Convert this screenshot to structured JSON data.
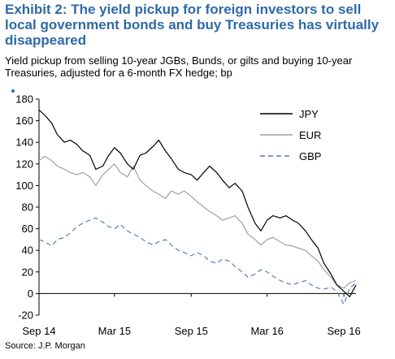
{
  "header": {
    "title": "Exhibit 2: The yield pickup for foreign investors to sell local government bonds and buy Treasuries has virtually disappeared",
    "subtitle": "Yield pickup from selling 10-year JGBs, Bunds, or gilts and buying 10-year Treasuries, adjusted for a 6-month FX hedge; bp"
  },
  "footer": {
    "source": "Source: J.P. Morgan"
  },
  "chart_data": {
    "type": "line",
    "title": "",
    "xlabel": "",
    "ylabel": "",
    "ylim": [
      -20,
      180
    ],
    "yticks": [
      -20,
      0,
      20,
      40,
      60,
      80,
      100,
      120,
      140,
      160,
      180
    ],
    "ytick_labels": [
      "-20",
      "0",
      "20",
      "40",
      "60",
      "80",
      "100",
      "120",
      "140",
      "160",
      "180"
    ],
    "xlim": [
      "2014-09-01",
      "2016-09-30"
    ],
    "xticks": [
      "2014-09-01",
      "2015-03-01",
      "2015-09-01",
      "2016-03-01",
      "2016-09-01"
    ],
    "xtick_labels": [
      "Sep 14",
      "Mar 15",
      "Sep 15",
      "Mar 16",
      "Sep 16"
    ],
    "grid": false,
    "legend_position": "top-right",
    "series": [
      {
        "name": "JPY",
        "color": "#000000",
        "dash": "solid",
        "points": [
          [
            "2014-09-01",
            170
          ],
          [
            "2014-09-15",
            165
          ],
          [
            "2014-10-01",
            158
          ],
          [
            "2014-10-15",
            147
          ],
          [
            "2014-11-01",
            140
          ],
          [
            "2014-11-15",
            142
          ],
          [
            "2014-12-01",
            138
          ],
          [
            "2014-12-15",
            132
          ],
          [
            "2015-01-01",
            128
          ],
          [
            "2015-01-15",
            115
          ],
          [
            "2015-02-01",
            118
          ],
          [
            "2015-02-15",
            128
          ],
          [
            "2015-03-01",
            135
          ],
          [
            "2015-03-15",
            130
          ],
          [
            "2015-04-01",
            120
          ],
          [
            "2015-04-15",
            115
          ],
          [
            "2015-05-01",
            128
          ],
          [
            "2015-05-15",
            130
          ],
          [
            "2015-06-01",
            136
          ],
          [
            "2015-06-15",
            142
          ],
          [
            "2015-07-01",
            132
          ],
          [
            "2015-07-15",
            125
          ],
          [
            "2015-08-01",
            115
          ],
          [
            "2015-08-15",
            112
          ],
          [
            "2015-09-01",
            110
          ],
          [
            "2015-09-15",
            105
          ],
          [
            "2015-10-01",
            112
          ],
          [
            "2015-10-15",
            118
          ],
          [
            "2015-11-01",
            112
          ],
          [
            "2015-11-15",
            105
          ],
          [
            "2015-12-01",
            98
          ],
          [
            "2015-12-15",
            102
          ],
          [
            "2016-01-01",
            95
          ],
          [
            "2016-01-15",
            80
          ],
          [
            "2016-02-01",
            65
          ],
          [
            "2016-02-15",
            58
          ],
          [
            "2016-03-01",
            68
          ],
          [
            "2016-03-15",
            72
          ],
          [
            "2016-04-01",
            70
          ],
          [
            "2016-04-15",
            72
          ],
          [
            "2016-05-01",
            68
          ],
          [
            "2016-05-15",
            65
          ],
          [
            "2016-06-01",
            58
          ],
          [
            "2016-06-15",
            50
          ],
          [
            "2016-07-01",
            42
          ],
          [
            "2016-07-15",
            28
          ],
          [
            "2016-08-01",
            18
          ],
          [
            "2016-08-15",
            8
          ],
          [
            "2016-09-01",
            2
          ],
          [
            "2016-09-15",
            -3
          ],
          [
            "2016-09-30",
            8
          ]
        ]
      },
      {
        "name": "EUR",
        "color": "#a0a0a0",
        "dash": "solid",
        "points": [
          [
            "2014-09-01",
            123
          ],
          [
            "2014-09-15",
            127
          ],
          [
            "2014-10-01",
            123
          ],
          [
            "2014-10-15",
            118
          ],
          [
            "2014-11-01",
            115
          ],
          [
            "2014-11-15",
            112
          ],
          [
            "2014-12-01",
            110
          ],
          [
            "2014-12-15",
            112
          ],
          [
            "2015-01-01",
            108
          ],
          [
            "2015-01-15",
            100
          ],
          [
            "2015-02-01",
            110
          ],
          [
            "2015-02-15",
            115
          ],
          [
            "2015-03-01",
            120
          ],
          [
            "2015-03-15",
            112
          ],
          [
            "2015-04-01",
            108
          ],
          [
            "2015-04-15",
            118
          ],
          [
            "2015-05-01",
            105
          ],
          [
            "2015-05-15",
            100
          ],
          [
            "2015-06-01",
            95
          ],
          [
            "2015-06-15",
            92
          ],
          [
            "2015-07-01",
            88
          ],
          [
            "2015-07-15",
            95
          ],
          [
            "2015-08-01",
            92
          ],
          [
            "2015-08-15",
            95
          ],
          [
            "2015-09-01",
            90
          ],
          [
            "2015-09-15",
            85
          ],
          [
            "2015-10-01",
            80
          ],
          [
            "2015-10-15",
            76
          ],
          [
            "2015-11-01",
            72
          ],
          [
            "2015-11-15",
            68
          ],
          [
            "2015-12-01",
            70
          ],
          [
            "2015-12-15",
            72
          ],
          [
            "2016-01-01",
            65
          ],
          [
            "2016-01-15",
            55
          ],
          [
            "2016-02-01",
            50
          ],
          [
            "2016-02-15",
            45
          ],
          [
            "2016-03-01",
            50
          ],
          [
            "2016-03-15",
            52
          ],
          [
            "2016-04-01",
            48
          ],
          [
            "2016-04-15",
            45
          ],
          [
            "2016-05-01",
            44
          ],
          [
            "2016-05-15",
            42
          ],
          [
            "2016-06-01",
            40
          ],
          [
            "2016-06-15",
            35
          ],
          [
            "2016-07-01",
            30
          ],
          [
            "2016-07-15",
            22
          ],
          [
            "2016-08-01",
            15
          ],
          [
            "2016-08-15",
            8
          ],
          [
            "2016-09-01",
            5
          ],
          [
            "2016-09-15",
            10
          ],
          [
            "2016-09-30",
            12
          ]
        ]
      },
      {
        "name": "GBP",
        "color": "#5a7fb5",
        "dash": "dashed",
        "points": [
          [
            "2014-09-01",
            50
          ],
          [
            "2014-09-15",
            48
          ],
          [
            "2014-10-01",
            44
          ],
          [
            "2014-10-15",
            50
          ],
          [
            "2014-11-01",
            52
          ],
          [
            "2014-11-15",
            56
          ],
          [
            "2014-12-01",
            62
          ],
          [
            "2014-12-15",
            65
          ],
          [
            "2015-01-01",
            68
          ],
          [
            "2015-01-15",
            70
          ],
          [
            "2015-02-01",
            66
          ],
          [
            "2015-02-15",
            62
          ],
          [
            "2015-03-01",
            60
          ],
          [
            "2015-03-15",
            64
          ],
          [
            "2015-04-01",
            58
          ],
          [
            "2015-04-15",
            55
          ],
          [
            "2015-05-01",
            52
          ],
          [
            "2015-05-15",
            48
          ],
          [
            "2015-06-01",
            45
          ],
          [
            "2015-06-15",
            48
          ],
          [
            "2015-07-01",
            50
          ],
          [
            "2015-07-15",
            45
          ],
          [
            "2015-08-01",
            40
          ],
          [
            "2015-08-15",
            38
          ],
          [
            "2015-09-01",
            35
          ],
          [
            "2015-09-15",
            38
          ],
          [
            "2015-10-01",
            35
          ],
          [
            "2015-10-15",
            30
          ],
          [
            "2015-11-01",
            28
          ],
          [
            "2015-11-15",
            32
          ],
          [
            "2015-12-01",
            30
          ],
          [
            "2015-12-15",
            25
          ],
          [
            "2016-01-01",
            20
          ],
          [
            "2016-01-15",
            15
          ],
          [
            "2016-02-01",
            18
          ],
          [
            "2016-02-15",
            22
          ],
          [
            "2016-03-01",
            20
          ],
          [
            "2016-03-15",
            16
          ],
          [
            "2016-04-01",
            12
          ],
          [
            "2016-04-15",
            10
          ],
          [
            "2016-05-01",
            8
          ],
          [
            "2016-05-15",
            10
          ],
          [
            "2016-06-01",
            12
          ],
          [
            "2016-06-15",
            8
          ],
          [
            "2016-07-01",
            5
          ],
          [
            "2016-07-15",
            4
          ],
          [
            "2016-08-01",
            6
          ],
          [
            "2016-08-15",
            2
          ],
          [
            "2016-09-01",
            -10
          ],
          [
            "2016-09-15",
            5
          ],
          [
            "2016-09-30",
            10
          ]
        ]
      }
    ]
  }
}
